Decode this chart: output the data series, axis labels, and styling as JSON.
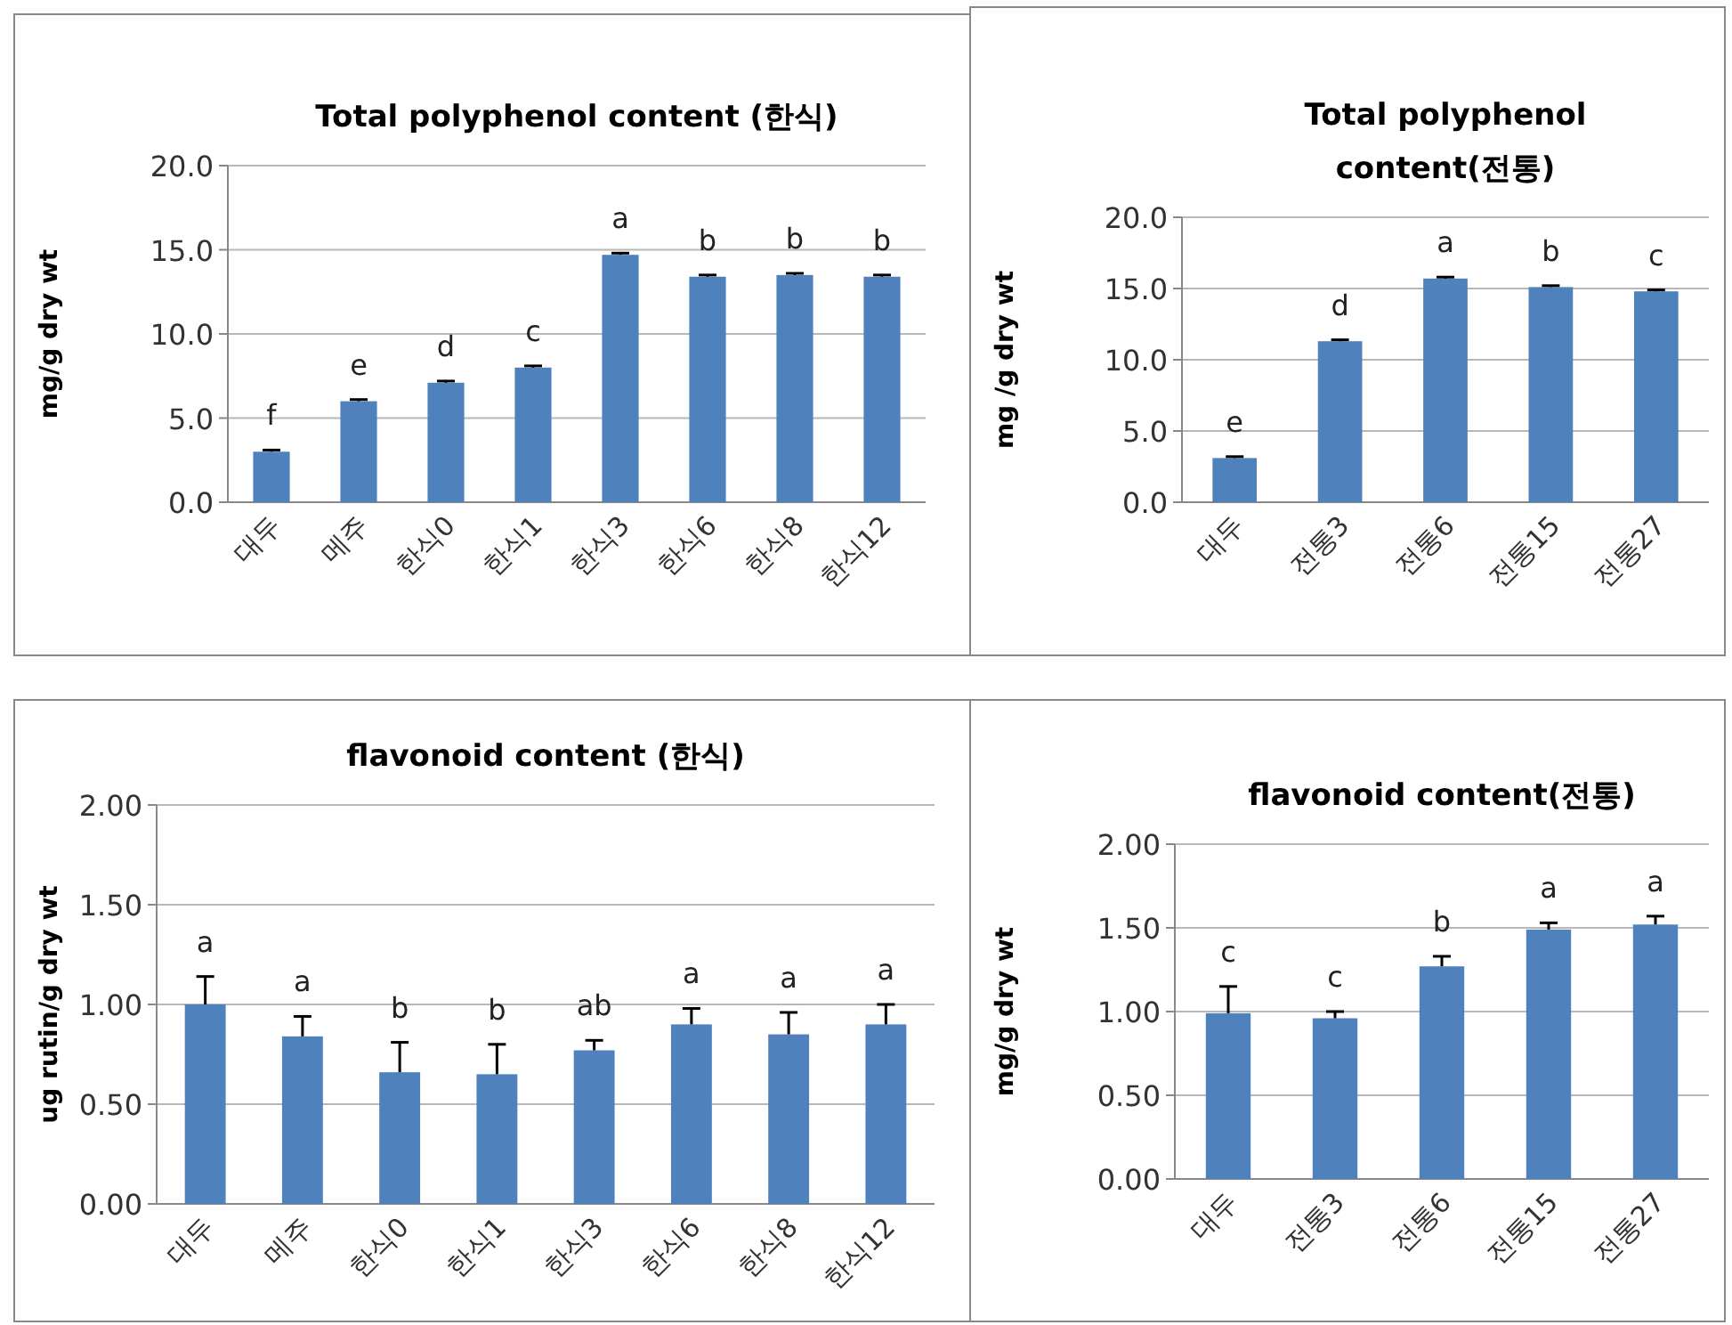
{
  "chart_data": [
    {
      "type": "bar",
      "title": "Total polyphenol content (한식)",
      "ylabel": "mg/g dry wt",
      "categories": [
        "대두",
        "메주",
        "한식0",
        "한식1",
        "한식3",
        "한식6",
        "한식8",
        "한식12"
      ],
      "values": [
        3.0,
        6.0,
        7.1,
        8.0,
        14.7,
        13.4,
        13.5,
        13.4
      ],
      "color": "#4f81bd",
      "errors": [
        [
          3.0,
          3.1
        ],
        [
          6.0,
          6.1
        ],
        [
          7.1,
          7.2
        ],
        [
          8.0,
          8.1
        ],
        [
          14.7,
          14.8
        ],
        [
          13.4,
          13.5
        ],
        [
          13.5,
          13.6
        ],
        [
          13.4,
          13.5
        ]
      ],
      "ylim": [
        0,
        20
      ],
      "yticks": [
        {
          "value": 0,
          "label": "0.0"
        },
        {
          "value": 5,
          "label": "5.0"
        },
        {
          "value": 10,
          "label": "10.0"
        },
        {
          "value": 15,
          "label": "15.0"
        },
        {
          "value": 20,
          "label": "20.0"
        }
      ],
      "grid": "y",
      "annotations": [
        {
          "text": "f",
          "x": "대두",
          "y": 3.1
        },
        {
          "text": "e",
          "x": "메주",
          "y": 6.1
        },
        {
          "text": "d",
          "x": "한식0",
          "y": 7.2
        },
        {
          "text": "c",
          "x": "한식1",
          "y": 8.1
        },
        {
          "text": "a",
          "x": "한식3",
          "y": 14.8
        },
        {
          "text": "b",
          "x": "한식6",
          "y": 13.5
        },
        {
          "text": "b",
          "x": "한식8",
          "y": 13.6
        },
        {
          "text": "b",
          "x": "한식12",
          "y": 13.5
        }
      ]
    },
    {
      "type": "bar",
      "title": "Total polyphenol content(전통)",
      "ylabel": "mg /g dry wt",
      "categories": [
        "대두",
        "전통3",
        "전통6",
        "전통15",
        "전통27"
      ],
      "values": [
        3.1,
        11.3,
        15.7,
        15.1,
        14.8
      ],
      "color": "#4f81bd",
      "errors": [
        [
          3.1,
          3.2
        ],
        [
          11.3,
          11.4
        ],
        [
          15.7,
          15.8
        ],
        [
          15.1,
          15.2
        ],
        [
          14.8,
          14.9
        ]
      ],
      "ylim": [
        0,
        20
      ],
      "yticks": [
        {
          "value": 0,
          "label": "0.0"
        },
        {
          "value": 5,
          "label": "5.0"
        },
        {
          "value": 10,
          "label": "10.0"
        },
        {
          "value": 15,
          "label": "15.0"
        },
        {
          "value": 20,
          "label": "20.0"
        }
      ],
      "grid": "y",
      "annotations": [
        {
          "text": "e",
          "x": "대두",
          "y": 3.2
        },
        {
          "text": "d",
          "x": "전통3",
          "y": 11.4
        },
        {
          "text": "a",
          "x": "전통6",
          "y": 15.8
        },
        {
          "text": "b",
          "x": "전통15",
          "y": 15.2
        },
        {
          "text": "c",
          "x": "전통27",
          "y": 14.9
        }
      ]
    },
    {
      "type": "bar",
      "title": "flavonoid content (한식)",
      "ylabel": "ug rutin/g dry wt",
      "categories": [
        "대두",
        "메주",
        "한식0",
        "한식1",
        "한식3",
        "한식6",
        "한식8",
        "한식12"
      ],
      "values": [
        1.0,
        0.84,
        0.66,
        0.65,
        0.77,
        0.9,
        0.85,
        0.9
      ],
      "color": "#4f81bd",
      "errors": [
        [
          1.0,
          1.14
        ],
        [
          0.84,
          0.94
        ],
        [
          0.66,
          0.81
        ],
        [
          0.65,
          0.8
        ],
        [
          0.77,
          0.82
        ],
        [
          0.9,
          0.98
        ],
        [
          0.85,
          0.96
        ],
        [
          0.9,
          1.0
        ]
      ],
      "ylim": [
        0,
        2
      ],
      "yticks": [
        {
          "value": 0,
          "label": "0.00"
        },
        {
          "value": 0.5,
          "label": "0.50"
        },
        {
          "value": 1,
          "label": "1.00"
        },
        {
          "value": 1.5,
          "label": "1.50"
        },
        {
          "value": 2,
          "label": "2.00"
        }
      ],
      "grid": "y",
      "annotations": [
        {
          "text": "a",
          "x": "대두",
          "y": 1.14
        },
        {
          "text": "a",
          "x": "메주",
          "y": 0.94
        },
        {
          "text": "b",
          "x": "한식0",
          "y": 0.81
        },
        {
          "text": "b",
          "x": "한식1",
          "y": 0.8
        },
        {
          "text": "ab",
          "x": "한식3",
          "y": 0.82
        },
        {
          "text": "a",
          "x": "한식6",
          "y": 0.98
        },
        {
          "text": "a",
          "x": "한식8",
          "y": 0.96
        },
        {
          "text": "a",
          "x": "한식12",
          "y": 1.0
        }
      ]
    },
    {
      "type": "bar",
      "title": "flavonoid content(전통)",
      "ylabel": "mg/g dry wt",
      "categories": [
        "대두",
        "전통3",
        "전통6",
        "전통15",
        "전통27"
      ],
      "values": [
        0.99,
        0.96,
        1.27,
        1.49,
        1.52
      ],
      "color": "#4f81bd",
      "errors": [
        [
          0.99,
          1.15
        ],
        [
          0.96,
          1.0
        ],
        [
          1.27,
          1.33
        ],
        [
          1.49,
          1.53
        ],
        [
          1.52,
          1.57
        ]
      ],
      "ylim": [
        0,
        2
      ],
      "yticks": [
        {
          "value": 0,
          "label": "0.00"
        },
        {
          "value": 0.5,
          "label": "0.50"
        },
        {
          "value": 1,
          "label": "1.00"
        },
        {
          "value": 1.5,
          "label": "1.50"
        },
        {
          "value": 2,
          "label": "2.00"
        }
      ],
      "grid": "y",
      "annotations": [
        {
          "text": "c",
          "x": "대두",
          "y": 1.15
        },
        {
          "text": "c",
          "x": "전통3",
          "y": 1.0
        },
        {
          "text": "b",
          "x": "전통6",
          "y": 1.33
        },
        {
          "text": "a",
          "x": "전통15",
          "y": 1.53
        },
        {
          "text": "a",
          "x": "전통27",
          "y": 1.57
        }
      ]
    }
  ]
}
